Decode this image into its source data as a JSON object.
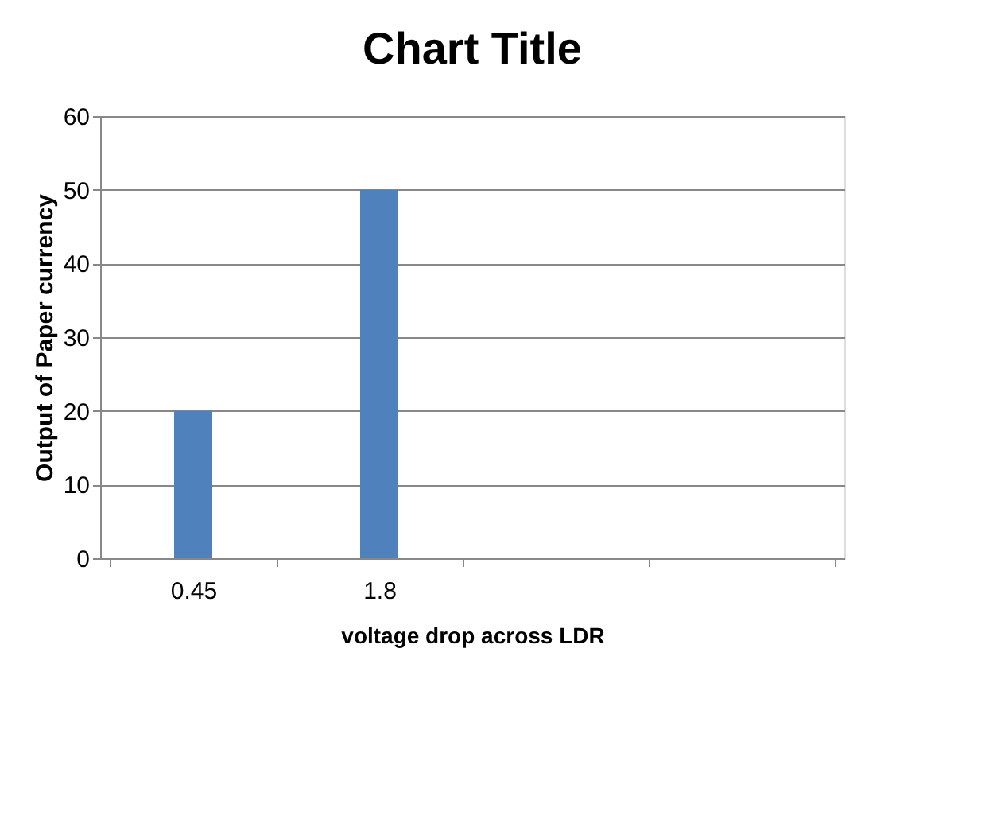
{
  "chart_data": {
    "type": "bar",
    "title": "Chart Title",
    "xlabel": "voltage drop across LDR",
    "ylabel": "Output  of Paper  currency",
    "categories": [
      "0.45",
      "1.8",
      null,
      null
    ],
    "values": [
      20,
      50,
      null,
      null
    ],
    "color": "#4f81bd",
    "ylim": [
      0,
      60
    ],
    "yticks": [
      0,
      10,
      20,
      30,
      40,
      50,
      60
    ],
    "grid": "y"
  }
}
